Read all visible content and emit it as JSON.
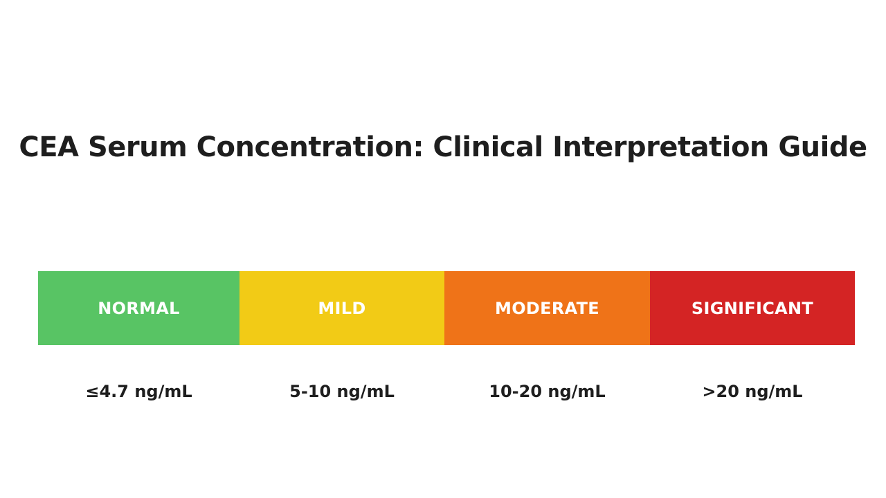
{
  "title": "CEA Serum Concentration: Clinical Interpretation Guide",
  "segments": [
    {
      "label": "NORMAL",
      "range": "≤4.7 ng/mL",
      "color": "#58c464"
    },
    {
      "label": "MILD",
      "range": "5-10 ng/mL",
      "color": "#f2cb16"
    },
    {
      "label": "MODERATE",
      "range": "10-20 ng/mL",
      "color": "#ef7318"
    },
    {
      "label": "SIGNIFICANT",
      "range": ">20 ng/mL",
      "color": "#d42424"
    }
  ]
}
